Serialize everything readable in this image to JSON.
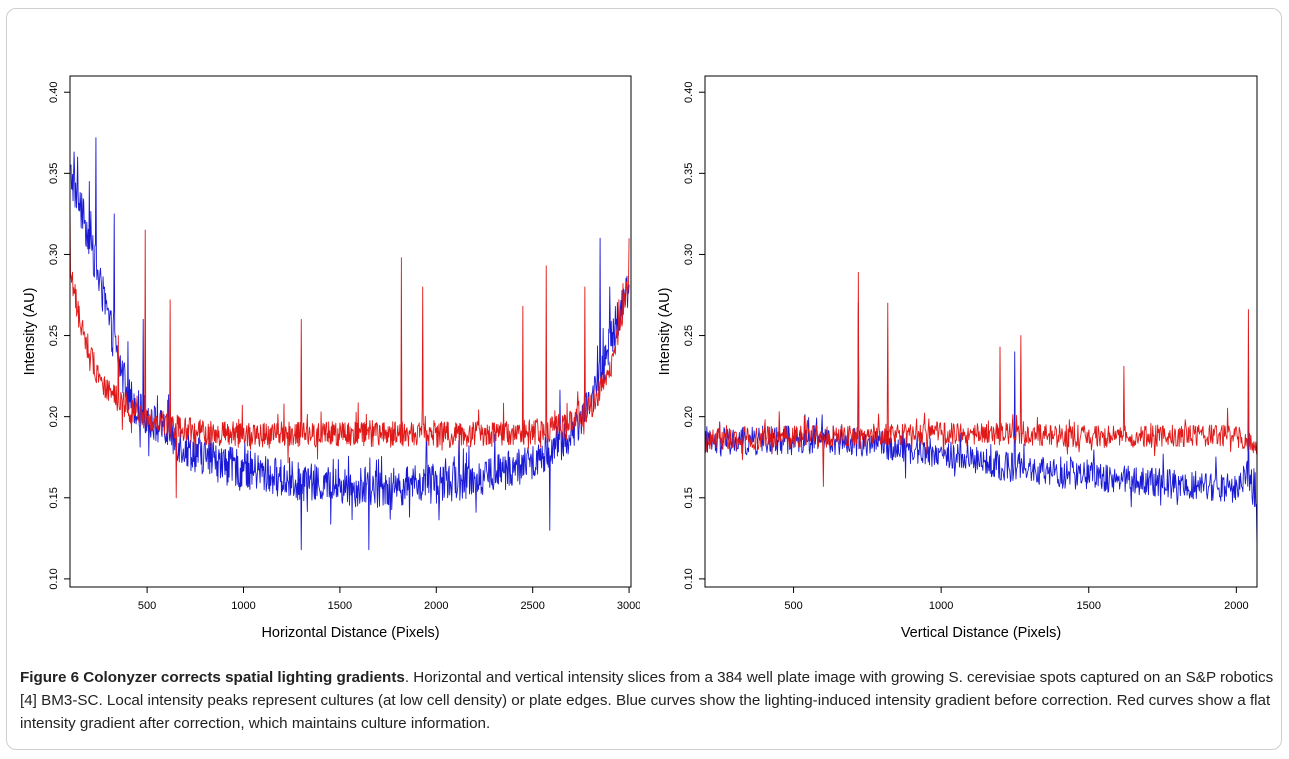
{
  "caption": {
    "bold": "Figure 6 Colonyzer corrects spatial lighting gradients",
    "text": ". Horizontal and vertical intensity slices from a 384 well plate image with growing S. cerevisiae spots captured on an S&P robotics [4] BM3-SC. Local intensity peaks represent cultures (at low cell density) or plate edges. Blue curves show the lighting-induced intensity gradient before correction. Red curves show a flat intensity gradient after correction, which maintains culture information."
  },
  "colors": {
    "blue": "#1a1ad6",
    "red": "#e01818"
  },
  "chart_data": [
    {
      "type": "line",
      "title": "",
      "xlabel": "Horizontal Distance (Pixels)",
      "ylabel": "Intensity (AU)",
      "xlim": [
        100,
        3010
      ],
      "ylim": [
        0.095,
        0.41
      ],
      "xticks": [
        500,
        1000,
        1500,
        2000,
        2500,
        3000
      ],
      "xtick_labels": [
        "500",
        "1000",
        "1500",
        "2000",
        "2500",
        "3000"
      ],
      "yticks": [
        0.1,
        0.15,
        0.2,
        0.25,
        0.3,
        0.35,
        0.4
      ],
      "ytick_labels": [
        "0.10",
        "0.15",
        "0.20",
        "0.25",
        "0.30",
        "0.35",
        "0.40"
      ],
      "legend": "none",
      "series": [
        {
          "color": "#1a1ad6",
          "x": [
            100,
            150,
            200,
            250,
            300,
            350,
            400,
            450,
            500,
            600,
            700,
            800,
            900,
            1000,
            1100,
            1200,
            1300,
            1400,
            1500,
            1600,
            1700,
            1800,
            1900,
            2000,
            2100,
            2200,
            2300,
            2400,
            2500,
            2600,
            2700,
            2750,
            2800,
            2850,
            2900,
            2950,
            3000
          ],
          "y": [
            0.35,
            0.33,
            0.31,
            0.285,
            0.26,
            0.235,
            0.215,
            0.205,
            0.2,
            0.19,
            0.18,
            0.175,
            0.17,
            0.168,
            0.165,
            0.162,
            0.16,
            0.158,
            0.157,
            0.156,
            0.156,
            0.157,
            0.158,
            0.159,
            0.16,
            0.162,
            0.165,
            0.168,
            0.172,
            0.18,
            0.19,
            0.2,
            0.21,
            0.225,
            0.245,
            0.265,
            0.28
          ],
          "noise": 0.012,
          "peaks": [
            [
              140,
              0.36
            ],
            [
              200,
              0.345
            ],
            [
              235,
              0.372
            ],
            [
              330,
              0.325
            ],
            [
              480,
              0.26
            ],
            [
              1300,
              0.118
            ],
            [
              1650,
              0.118
            ],
            [
              2590,
              0.13
            ],
            [
              2850,
              0.31
            ],
            [
              2900,
              0.28
            ]
          ]
        },
        {
          "color": "#e01818",
          "x": [
            100,
            150,
            200,
            250,
            300,
            400,
            500,
            600,
            700,
            800,
            1000,
            1200,
            1400,
            1600,
            1800,
            2000,
            2200,
            2400,
            2600,
            2700,
            2800,
            2850,
            2900,
            2950,
            3000
          ],
          "y": [
            0.29,
            0.26,
            0.24,
            0.225,
            0.215,
            0.205,
            0.198,
            0.195,
            0.192,
            0.19,
            0.189,
            0.189,
            0.189,
            0.189,
            0.189,
            0.189,
            0.189,
            0.189,
            0.192,
            0.196,
            0.205,
            0.215,
            0.23,
            0.255,
            0.285
          ],
          "noise": 0.008,
          "peaks": [
            [
              100,
              0.33
            ],
            [
              350,
              0.25
            ],
            [
              490,
              0.315
            ],
            [
              620,
              0.272
            ],
            [
              650,
              0.15
            ],
            [
              1300,
              0.26
            ],
            [
              1820,
              0.298
            ],
            [
              1930,
              0.28
            ],
            [
              2450,
              0.268
            ],
            [
              2570,
              0.293
            ],
            [
              2770,
              0.28
            ],
            [
              3000,
              0.31
            ]
          ]
        }
      ]
    },
    {
      "type": "line",
      "title": "",
      "xlabel": "Vertical Distance (Pixels)",
      "ylabel": "Intensity (AU)",
      "xlim": [
        200,
        2070
      ],
      "ylim": [
        0.095,
        0.41
      ],
      "xticks": [
        500,
        1000,
        1500,
        2000
      ],
      "xtick_labels": [
        "500",
        "1000",
        "1500",
        "2000"
      ],
      "yticks": [
        0.1,
        0.15,
        0.2,
        0.25,
        0.3,
        0.35,
        0.4
      ],
      "ytick_labels": [
        "0.10",
        "0.15",
        "0.20",
        "0.25",
        "0.30",
        "0.35",
        "0.40"
      ],
      "legend": "none",
      "series": [
        {
          "color": "#1a1ad6",
          "x": [
            200,
            300,
            400,
            500,
            600,
            700,
            800,
            900,
            1000,
            1100,
            1200,
            1300,
            1400,
            1500,
            1600,
            1700,
            1800,
            1900,
            2000,
            2040,
            2070
          ],
          "y": [
            0.183,
            0.184,
            0.185,
            0.186,
            0.186,
            0.185,
            0.183,
            0.18,
            0.177,
            0.174,
            0.17,
            0.167,
            0.165,
            0.163,
            0.162,
            0.16,
            0.158,
            0.157,
            0.156,
            0.165,
            0.145
          ],
          "noise": 0.009,
          "peaks": [
            [
              720,
              0.27
            ],
            [
              1250,
              0.24
            ],
            [
              2040,
              0.205
            ],
            [
              2070,
              0.12
            ]
          ]
        },
        {
          "color": "#e01818",
          "x": [
            200,
            400,
            600,
            800,
            1000,
            1200,
            1400,
            1600,
            1800,
            2000,
            2070
          ],
          "y": [
            0.186,
            0.187,
            0.188,
            0.189,
            0.19,
            0.189,
            0.188,
            0.188,
            0.188,
            0.188,
            0.18
          ],
          "noise": 0.007,
          "peaks": [
            [
              600,
              0.157
            ],
            [
              720,
              0.289
            ],
            [
              820,
              0.27
            ],
            [
              1200,
              0.243
            ],
            [
              1270,
              0.25
            ],
            [
              1620,
              0.231
            ],
            [
              2040,
              0.266
            ]
          ]
        }
      ]
    }
  ]
}
